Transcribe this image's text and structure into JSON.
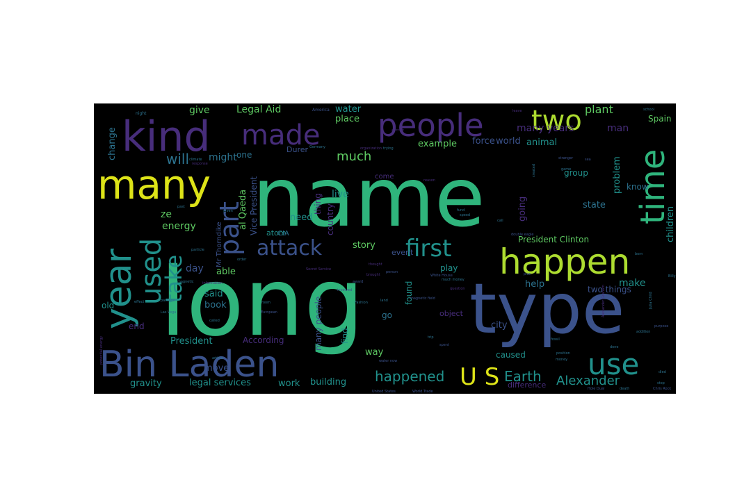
{
  "palette": {
    "background": "#000000",
    "page": "#ffffff",
    "yellow": "#dde318",
    "lime": "#addc30",
    "green": "#5ec962",
    "teal_green": "#2fb47c",
    "teal": "#21918c",
    "blue_teal": "#2c728e",
    "blue": "#3b528b",
    "purple": "#472d7b",
    "dark_purple": "#440154"
  },
  "words": [
    {
      "text": "name",
      "color": "teal_green"
    },
    {
      "text": "long",
      "color": "teal_green"
    },
    {
      "text": "type",
      "color": "blue"
    },
    {
      "text": "kind",
      "color": "purple"
    },
    {
      "text": "many",
      "color": "yellow"
    },
    {
      "text": "year",
      "color": "teal"
    },
    {
      "text": "Bin Laden",
      "color": "blue"
    },
    {
      "text": "people",
      "color": "purple"
    },
    {
      "text": "made",
      "color": "purple"
    },
    {
      "text": "two",
      "color": "lime"
    },
    {
      "text": "time",
      "color": "teal_green"
    },
    {
      "text": "happen",
      "color": "lime"
    },
    {
      "text": "use",
      "color": "teal"
    },
    {
      "text": "part",
      "color": "blue"
    },
    {
      "text": "used",
      "color": "teal"
    },
    {
      "text": "attack",
      "color": "blue"
    },
    {
      "text": "first",
      "color": "teal"
    },
    {
      "text": "take",
      "color": "teal"
    },
    {
      "text": "U S",
      "color": "yellow"
    },
    {
      "text": "Alexander",
      "color": "teal"
    },
    {
      "text": "happened",
      "color": "teal"
    },
    {
      "text": "Earth",
      "color": "teal"
    },
    {
      "text": "will",
      "color": "blue_teal"
    },
    {
      "text": "plant",
      "color": "green"
    },
    {
      "text": "much",
      "color": "green"
    },
    {
      "text": "many years",
      "color": "purple"
    },
    {
      "text": "Legal Aid",
      "color": "green"
    },
    {
      "text": "give",
      "color": "green"
    },
    {
      "text": "might",
      "color": "blue_teal"
    },
    {
      "text": "change",
      "color": "blue_teal"
    },
    {
      "text": "place",
      "color": "green"
    },
    {
      "text": "water",
      "color": "teal"
    },
    {
      "text": "example",
      "color": "green"
    },
    {
      "text": "force",
      "color": "blue"
    },
    {
      "text": "world",
      "color": "blue"
    },
    {
      "text": "animal",
      "color": "teal"
    },
    {
      "text": "problem",
      "color": "teal"
    },
    {
      "text": "children",
      "color": "teal"
    },
    {
      "text": "know",
      "color": "blue_teal"
    },
    {
      "text": "group",
      "color": "teal"
    },
    {
      "text": "Spain",
      "color": "green"
    },
    {
      "text": "state",
      "color": "blue_teal"
    },
    {
      "text": "going",
      "color": "purple"
    },
    {
      "text": "President Clinton",
      "color": "green"
    },
    {
      "text": "Vice President",
      "color": "blue"
    },
    {
      "text": "al Qaeda",
      "color": "green"
    },
    {
      "text": "energy",
      "color": "green"
    },
    {
      "text": "ze",
      "color": "green"
    },
    {
      "text": "atom",
      "color": "teal"
    },
    {
      "text": "Mr Thorndike",
      "color": "blue"
    },
    {
      "text": "need",
      "color": "teal"
    },
    {
      "text": "thing",
      "color": "purple"
    },
    {
      "text": "live",
      "color": "teal"
    },
    {
      "text": "country",
      "color": "purple"
    },
    {
      "text": "story",
      "color": "green"
    },
    {
      "text": "event",
      "color": "blue"
    },
    {
      "text": "day",
      "color": "blue"
    },
    {
      "text": "help",
      "color": "blue_teal"
    },
    {
      "text": "make",
      "color": "teal"
    },
    {
      "text": "two things",
      "color": "blue"
    },
    {
      "text": "play",
      "color": "teal"
    },
    {
      "text": "able",
      "color": "green"
    },
    {
      "text": "said",
      "color": "teal"
    },
    {
      "text": "book",
      "color": "blue_teal"
    },
    {
      "text": "found",
      "color": "teal"
    },
    {
      "text": "find",
      "color": "teal"
    },
    {
      "text": "go",
      "color": "blue_teal"
    },
    {
      "text": "city",
      "color": "blue"
    },
    {
      "text": "object",
      "color": "purple"
    },
    {
      "text": "old",
      "color": "teal"
    },
    {
      "text": "end",
      "color": "purple"
    },
    {
      "text": "President",
      "color": "teal"
    },
    {
      "text": "According",
      "color": "purple"
    },
    {
      "text": "many people",
      "color": "blue"
    },
    {
      "text": "move",
      "color": "blue"
    },
    {
      "text": "way",
      "color": "green"
    },
    {
      "text": "caused",
      "color": "teal"
    },
    {
      "text": "gravity",
      "color": "teal"
    },
    {
      "text": "legal services",
      "color": "teal"
    },
    {
      "text": "work",
      "color": "teal"
    },
    {
      "text": "building",
      "color": "teal"
    },
    {
      "text": "difference",
      "color": "purple"
    },
    {
      "text": "one",
      "color": "blue_teal"
    },
    {
      "text": "Durer",
      "color": "blue"
    },
    {
      "text": "CIA",
      "color": "blue_teal"
    },
    {
      "text": "come",
      "color": "purple"
    },
    {
      "text": "man",
      "color": "purple"
    }
  ],
  "small_words": [
    {
      "text": "night",
      "color": "blue_teal"
    },
    {
      "text": "America",
      "color": "blue"
    },
    {
      "text": "Germany",
      "color": "blue_teal"
    },
    {
      "text": "aircraft",
      "color": "purple"
    },
    {
      "text": "organization",
      "color": "purple"
    },
    {
      "text": "trying",
      "color": "blue_teal"
    },
    {
      "text": "magnetic field",
      "color": "blue"
    },
    {
      "text": "particle",
      "color": "blue_teal"
    },
    {
      "text": "climate",
      "color": "blue_teal"
    },
    {
      "text": "response",
      "color": "purple"
    },
    {
      "text": "brought",
      "color": "purple"
    },
    {
      "text": "thought",
      "color": "purple"
    },
    {
      "text": "person",
      "color": "blue"
    },
    {
      "text": "White House",
      "color": "blue"
    },
    {
      "text": "much money",
      "color": "blue_teal"
    },
    {
      "text": "question",
      "color": "purple"
    },
    {
      "text": "Secret Service",
      "color": "purple"
    },
    {
      "text": "Fashion",
      "color": "blue_teal"
    },
    {
      "text": "room",
      "color": "blue_teal"
    },
    {
      "text": "European",
      "color": "blue"
    },
    {
      "text": "involved",
      "color": "blue"
    },
    {
      "text": "magnetic",
      "color": "blue_teal"
    },
    {
      "text": "Las Vega",
      "color": "blue_teal"
    },
    {
      "text": "passage",
      "color": "blue_teal"
    },
    {
      "text": "effect",
      "color": "blue_teal"
    },
    {
      "text": "information",
      "color": "purple"
    },
    {
      "text": "called",
      "color": "blue_teal"
    },
    {
      "text": "article",
      "color": "blue_teal"
    },
    {
      "text": "potential energy",
      "color": "purple"
    },
    {
      "text": "United States",
      "color": "blue"
    },
    {
      "text": "World Trade",
      "color": "blue"
    },
    {
      "text": "water now",
      "color": "blue"
    },
    {
      "text": "double eagle",
      "color": "blue"
    },
    {
      "text": "award",
      "color": "blue"
    },
    {
      "text": "plan",
      "color": "blue"
    },
    {
      "text": "fossil",
      "color": "blue_teal"
    },
    {
      "text": "addition",
      "color": "blue_teal"
    },
    {
      "text": "school",
      "color": "blue_teal"
    },
    {
      "text": "purpose",
      "color": "blue"
    },
    {
      "text": "Chris Rock",
      "color": "blue"
    },
    {
      "text": "Julia Child",
      "color": "blue_teal"
    },
    {
      "text": "Billy",
      "color": "blue_teal"
    },
    {
      "text": "born",
      "color": "blue_teal"
    },
    {
      "text": "died",
      "color": "blue_teal"
    },
    {
      "text": "stop",
      "color": "blue_teal"
    },
    {
      "text": "done",
      "color": "blue_teal"
    },
    {
      "text": "position",
      "color": "blue_teal"
    },
    {
      "text": "money",
      "color": "blue_teal"
    },
    {
      "text": "death",
      "color": "blue_teal"
    },
    {
      "text": "Hole Dual",
      "color": "blue"
    },
    {
      "text": "trip",
      "color": "blue_teal"
    },
    {
      "text": "spent",
      "color": "blue"
    },
    {
      "text": "game",
      "color": "blue_teal"
    },
    {
      "text": "created",
      "color": "blue_teal"
    },
    {
      "text": "Alexander Graham",
      "color": "purple"
    },
    {
      "text": "stranger",
      "color": "blue"
    },
    {
      "text": "reason",
      "color": "purple"
    },
    {
      "text": "fund",
      "color": "blue_teal"
    },
    {
      "text": "call",
      "color": "blue_teal"
    },
    {
      "text": "land",
      "color": "blue_teal"
    },
    {
      "text": "speed",
      "color": "blue_teal"
    },
    {
      "text": "past",
      "color": "blue_teal"
    },
    {
      "text": "order",
      "color": "blue_teal"
    },
    {
      "text": "given",
      "color": "blue_teal"
    },
    {
      "text": "sea",
      "color": "blue"
    },
    {
      "text": "leave",
      "color": "purple"
    }
  ]
}
